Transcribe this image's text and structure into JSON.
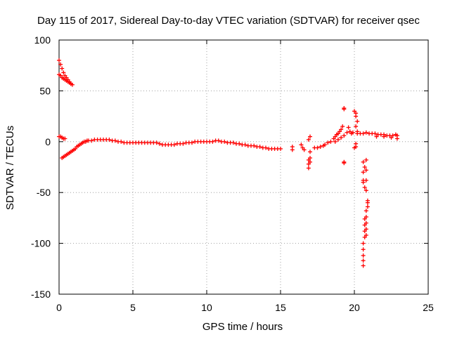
{
  "chart_data": {
    "type": "scatter",
    "title": "Day 115 of 2017, Sidereal Day-to-day VTEC variation (SDTVAR) for receiver qsec",
    "xlabel": "GPS time / hours",
    "ylabel": "SDTVAR / TECUs",
    "xlim": [
      0,
      25
    ],
    "ylim": [
      -150,
      100
    ],
    "xticks": [
      0,
      5,
      10,
      15,
      20,
      25
    ],
    "yticks": [
      -150,
      -100,
      -50,
      0,
      50,
      100
    ],
    "grid": true,
    "marker": "+",
    "series": [
      {
        "name": "SDTVAR",
        "color": "#ff0000",
        "points": [
          [
            0.0,
            80
          ],
          [
            0.1,
            76
          ],
          [
            0.2,
            72
          ],
          [
            0.3,
            68
          ],
          [
            0.4,
            65
          ],
          [
            0.5,
            63
          ],
          [
            0.6,
            61
          ],
          [
            0.7,
            59
          ],
          [
            0.8,
            57
          ],
          [
            0.9,
            56
          ],
          [
            0.0,
            66
          ],
          [
            0.1,
            65
          ],
          [
            0.2,
            63
          ],
          [
            0.3,
            62
          ],
          [
            0.4,
            61
          ],
          [
            0.5,
            60
          ],
          [
            0.6,
            59
          ],
          [
            0.7,
            58
          ],
          [
            0.8,
            57
          ],
          [
            0.0,
            5
          ],
          [
            0.1,
            5
          ],
          [
            0.2,
            4
          ],
          [
            0.3,
            3
          ],
          [
            0.4,
            3
          ],
          [
            0.2,
            -16
          ],
          [
            0.3,
            -15
          ],
          [
            0.4,
            -14
          ],
          [
            0.5,
            -13
          ],
          [
            0.6,
            -12
          ],
          [
            0.7,
            -11
          ],
          [
            0.8,
            -10
          ],
          [
            0.9,
            -9
          ],
          [
            1.0,
            -8
          ],
          [
            1.1,
            -7
          ],
          [
            1.2,
            -5
          ],
          [
            1.3,
            -4
          ],
          [
            1.4,
            -3
          ],
          [
            1.5,
            -2
          ],
          [
            1.6,
            -1
          ],
          [
            1.7,
            0
          ],
          [
            1.8,
            0
          ],
          [
            1.9,
            1
          ],
          [
            2.0,
            1
          ],
          [
            2.2,
            1
          ],
          [
            2.4,
            2
          ],
          [
            2.6,
            2
          ],
          [
            2.8,
            2
          ],
          [
            3.0,
            2
          ],
          [
            3.2,
            2
          ],
          [
            3.4,
            2
          ],
          [
            3.6,
            1
          ],
          [
            3.8,
            1
          ],
          [
            4.0,
            0
          ],
          [
            4.2,
            0
          ],
          [
            4.4,
            -1
          ],
          [
            4.6,
            -1
          ],
          [
            4.8,
            -1
          ],
          [
            5.0,
            -1
          ],
          [
            5.2,
            -1
          ],
          [
            5.4,
            -1
          ],
          [
            5.6,
            -1
          ],
          [
            5.8,
            -1
          ],
          [
            6.0,
            -1
          ],
          [
            6.2,
            -1
          ],
          [
            6.4,
            -1
          ],
          [
            6.6,
            -1
          ],
          [
            6.8,
            -2
          ],
          [
            7.0,
            -3
          ],
          [
            7.2,
            -3
          ],
          [
            7.4,
            -3
          ],
          [
            7.6,
            -3
          ],
          [
            7.8,
            -3
          ],
          [
            8.0,
            -2
          ],
          [
            8.2,
            -2
          ],
          [
            8.4,
            -2
          ],
          [
            8.6,
            -1
          ],
          [
            8.8,
            -1
          ],
          [
            9.0,
            -1
          ],
          [
            9.2,
            0
          ],
          [
            9.4,
            0
          ],
          [
            9.6,
            0
          ],
          [
            9.8,
            0
          ],
          [
            10.0,
            0
          ],
          [
            10.2,
            0
          ],
          [
            10.4,
            0
          ],
          [
            10.6,
            1
          ],
          [
            10.8,
            1
          ],
          [
            11.0,
            0
          ],
          [
            11.2,
            0
          ],
          [
            11.4,
            -1
          ],
          [
            11.6,
            -1
          ],
          [
            11.8,
            -1
          ],
          [
            12.0,
            -2
          ],
          [
            12.2,
            -2
          ],
          [
            12.4,
            -3
          ],
          [
            12.6,
            -3
          ],
          [
            12.8,
            -4
          ],
          [
            13.0,
            -4
          ],
          [
            13.2,
            -4
          ],
          [
            13.4,
            -5
          ],
          [
            13.6,
            -5
          ],
          [
            13.8,
            -6
          ],
          [
            14.0,
            -6
          ],
          [
            14.2,
            -7
          ],
          [
            14.4,
            -7
          ],
          [
            14.6,
            -7
          ],
          [
            14.8,
            -7
          ],
          [
            15.0,
            -7
          ],
          [
            15.8,
            -5
          ],
          [
            15.8,
            -8
          ],
          [
            16.4,
            -3
          ],
          [
            16.5,
            -6
          ],
          [
            16.6,
            -8
          ],
          [
            16.9,
            -18
          ],
          [
            16.9,
            -22
          ],
          [
            16.9,
            -26
          ],
          [
            17.0,
            -20
          ],
          [
            17.0,
            -16
          ],
          [
            16.9,
            2
          ],
          [
            17.0,
            5
          ],
          [
            17.0,
            -10
          ],
          [
            17.3,
            -6
          ],
          [
            17.5,
            -6
          ],
          [
            17.7,
            -5
          ],
          [
            17.9,
            -4
          ],
          [
            18.0,
            -3
          ],
          [
            18.2,
            -1
          ],
          [
            18.4,
            0
          ],
          [
            18.6,
            3
          ],
          [
            18.7,
            5
          ],
          [
            18.8,
            7
          ],
          [
            18.9,
            8
          ],
          [
            19.0,
            10
          ],
          [
            19.1,
            12
          ],
          [
            19.2,
            15
          ],
          [
            18.7,
            0
          ],
          [
            18.9,
            2
          ],
          [
            19.1,
            4
          ],
          [
            19.3,
            6
          ],
          [
            19.3,
            32
          ],
          [
            19.3,
            33
          ],
          [
            19.3,
            -20
          ],
          [
            19.3,
            -21
          ],
          [
            19.5,
            9
          ],
          [
            19.6,
            14
          ],
          [
            19.7,
            10
          ],
          [
            19.8,
            8
          ],
          [
            19.9,
            9
          ],
          [
            20.0,
            30
          ],
          [
            20.1,
            28
          ],
          [
            20.1,
            25
          ],
          [
            20.2,
            20
          ],
          [
            20.1,
            15
          ],
          [
            20.2,
            10
          ],
          [
            20.2,
            8
          ],
          [
            20.1,
            -2
          ],
          [
            20.1,
            -5
          ],
          [
            20.0,
            -6
          ],
          [
            20.4,
            8
          ],
          [
            20.6,
            8
          ],
          [
            20.8,
            9
          ],
          [
            21.0,
            8
          ],
          [
            20.6,
            -20
          ],
          [
            20.6,
            -30
          ],
          [
            20.6,
            -40
          ],
          [
            20.7,
            -45
          ],
          [
            20.6,
            -38
          ],
          [
            20.7,
            -25
          ],
          [
            20.8,
            -18
          ],
          [
            20.8,
            -28
          ],
          [
            20.8,
            -38
          ],
          [
            20.8,
            -48
          ],
          [
            20.6,
            -122
          ],
          [
            20.6,
            -117
          ],
          [
            20.6,
            -112
          ],
          [
            20.6,
            -106
          ],
          [
            20.6,
            -100
          ],
          [
            20.7,
            -94
          ],
          [
            20.7,
            -88
          ],
          [
            20.7,
            -82
          ],
          [
            20.7,
            -76
          ],
          [
            20.8,
            -92
          ],
          [
            20.8,
            -86
          ],
          [
            20.8,
            -80
          ],
          [
            20.8,
            -74
          ],
          [
            20.8,
            -68
          ],
          [
            20.9,
            -64
          ],
          [
            20.9,
            -60
          ],
          [
            20.9,
            -58
          ],
          [
            21.2,
            8
          ],
          [
            21.4,
            8
          ],
          [
            21.6,
            7
          ],
          [
            21.8,
            7
          ],
          [
            22.0,
            7
          ],
          [
            22.2,
            6
          ],
          [
            22.4,
            6
          ],
          [
            22.6,
            6
          ],
          [
            22.8,
            7
          ],
          [
            22.9,
            6
          ],
          [
            21.5,
            5
          ],
          [
            22.0,
            5
          ],
          [
            22.5,
            4
          ],
          [
            22.9,
            3
          ]
        ]
      }
    ]
  }
}
